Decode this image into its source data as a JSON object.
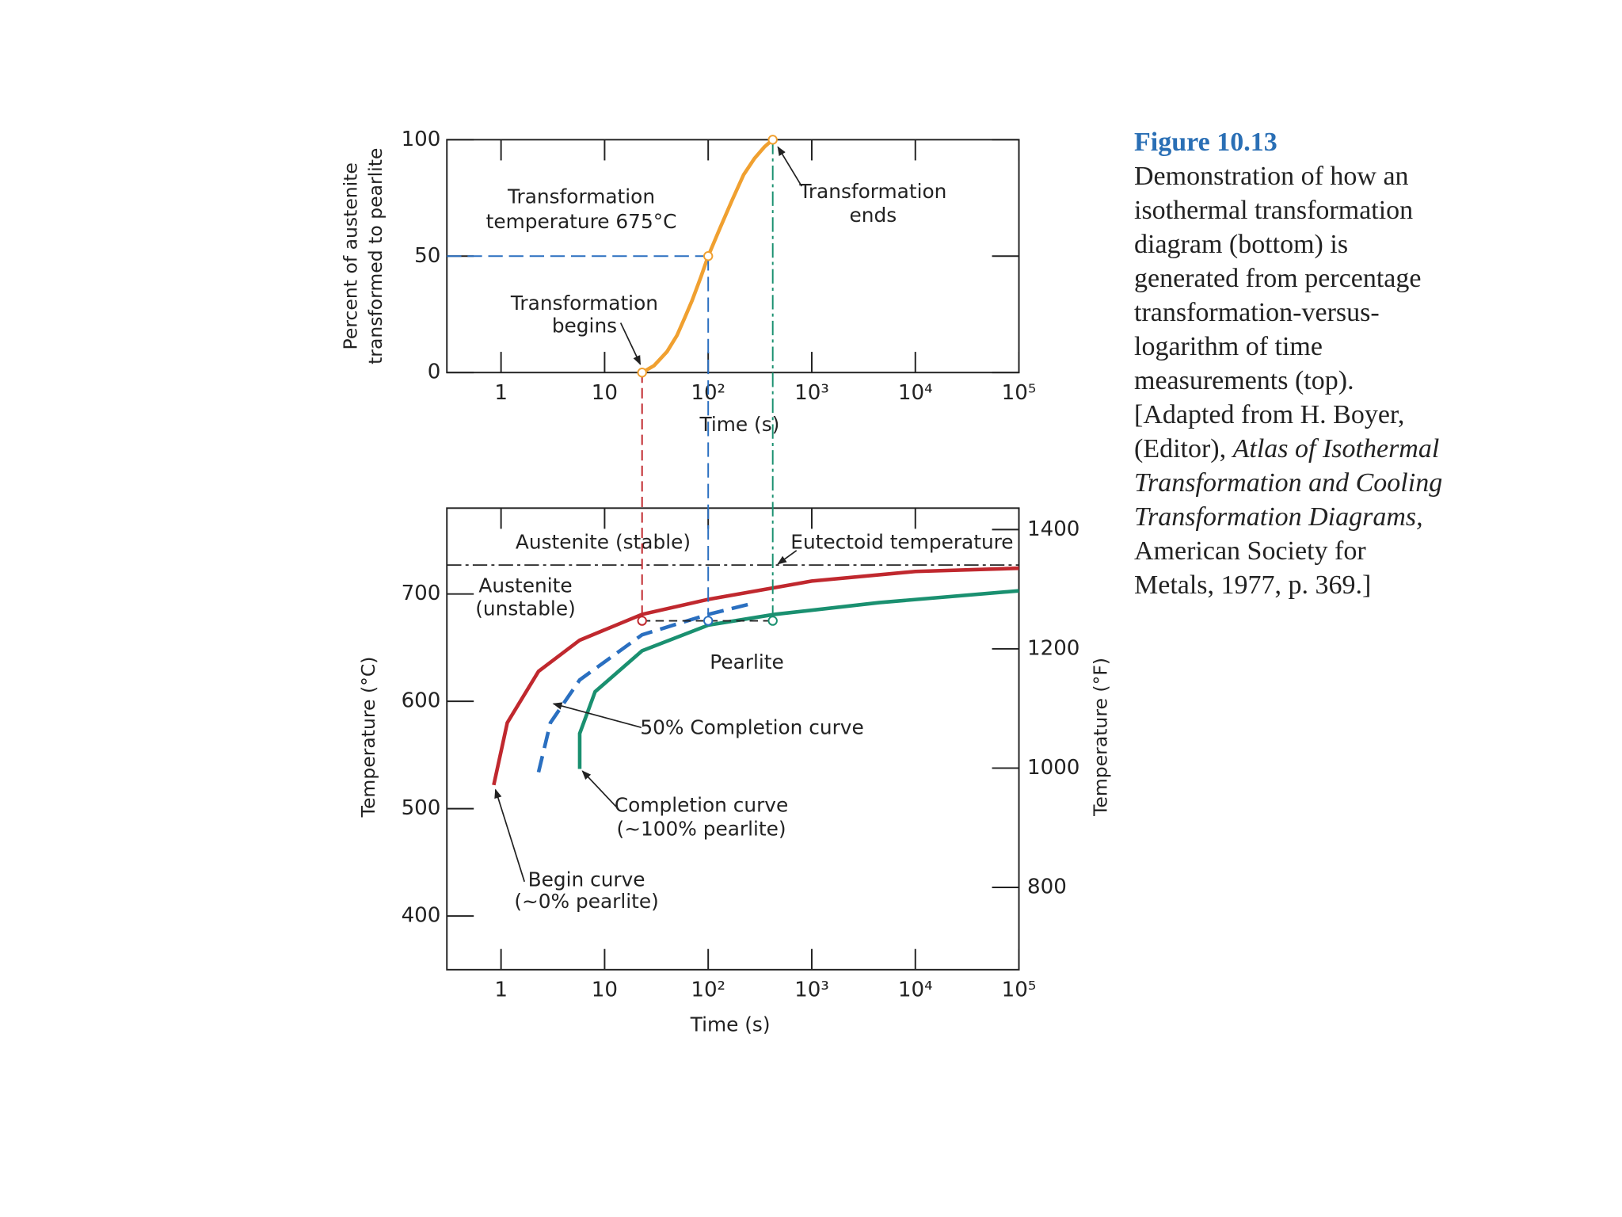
{
  "chart_data": [
    {
      "type": "line",
      "xlog": true,
      "x": [
        23,
        30,
        40,
        50,
        60,
        70,
        85,
        100,
        130,
        170,
        220,
        280,
        350,
        420
      ],
      "series": [
        {
          "color": "#f0a030",
          "values": [
            0,
            3,
            9,
            16,
            24,
            31,
            41,
            50,
            62,
            74,
            85,
            92,
            97,
            100
          ]
        }
      ],
      "markers": {
        "x": [
          23,
          100,
          420
        ],
        "y": [
          0,
          50,
          100
        ]
      },
      "xlim": [
        0.3,
        100000
      ],
      "xticks": [
        1,
        10,
        {
          "value": 100,
          "label": "10²"
        },
        {
          "value": 1000,
          "label": "10³"
        },
        {
          "value": 10000,
          "label": "10⁴"
        },
        {
          "value": 100000,
          "label": "10⁵"
        }
      ],
      "ylim": [
        0,
        100
      ],
      "yticks": [
        0,
        50,
        100
      ],
      "xlabel": "Time (s)",
      "ylabel": [
        "Percent of austenite",
        "transformed to pearlite"
      ],
      "annotations": [
        {
          "text": [
            "Transformation",
            "temperature 675°C"
          ]
        },
        {
          "text": [
            "Transformation",
            "begins"
          ]
        },
        {
          "text": [
            "Transformation",
            "ends"
          ]
        }
      ]
    },
    {
      "type": "line",
      "xlog": true,
      "series": [
        {
          "color": "#c0282e",
          "x": [
            0.85,
            1.15,
            2.3,
            5.75,
            23,
            100,
            1000,
            10000,
            100000
          ],
          "values": [
            522,
            580,
            628,
            657,
            681,
            695,
            712,
            721,
            724
          ]
        },
        {
          "color": "#2a6fc0",
          "dashed": true,
          "x": [
            2.3,
            3.0,
            5.75,
            23,
            100,
            288
          ],
          "values": [
            534,
            580,
            620,
            662,
            681,
            692
          ]
        },
        {
          "color": "#1a9070",
          "x": [
            5.75,
            5.75,
            8.1,
            23,
            100,
            437,
            4467,
            100000
          ],
          "values": [
            537,
            570,
            609,
            647,
            671,
            681,
            692,
            703
          ]
        }
      ],
      "eutectoid_temperature": 727,
      "markers": {
        "x": [
          23,
          100,
          420
        ],
        "y": [
          675,
          675,
          675
        ]
      },
      "xlim": [
        0.3,
        100000
      ],
      "xticks": [
        1,
        10,
        {
          "value": 100,
          "label": "10²"
        },
        {
          "value": 1000,
          "label": "10³"
        },
        {
          "value": 10000,
          "label": "10⁴"
        },
        {
          "value": 100000,
          "label": "10⁵"
        }
      ],
      "ylim": [
        350,
        780
      ],
      "yticks": [
        400,
        500,
        600,
        700
      ],
      "y2lim": [
        662,
        1436
      ],
      "y2ticks": [
        800,
        1000,
        1200,
        1400
      ],
      "xlabel": "Time (s)",
      "ylabel": "Temperature (°C)",
      "y2label": "Temperature (°F)",
      "annotations": [
        {
          "text": [
            "Austenite (stable)"
          ]
        },
        {
          "text": [
            "Austenite",
            "(unstable)"
          ]
        },
        {
          "text": [
            "Eutectoid temperature"
          ]
        },
        {
          "text": [
            "Pearlite"
          ]
        },
        {
          "text": [
            "50% Completion curve"
          ]
        },
        {
          "text": [
            "Completion curve",
            "(~100% pearlite)"
          ]
        },
        {
          "text": [
            "Begin curve",
            "(~0% pearlite)"
          ]
        }
      ]
    }
  ],
  "caption": {
    "title": "Figure 10.13",
    "parts": [
      "Demonstration of how an isothermal transformation diagram (bottom) is generated from percentage transformation-versus-logarithm of time measurements (top). [Adapted from H. Boyer, (Editor), ",
      "Atlas of Isothermal Transformation and Cooling Transformation Diagrams,",
      " American Society for Metals, 1977, p. 369.]"
    ]
  }
}
